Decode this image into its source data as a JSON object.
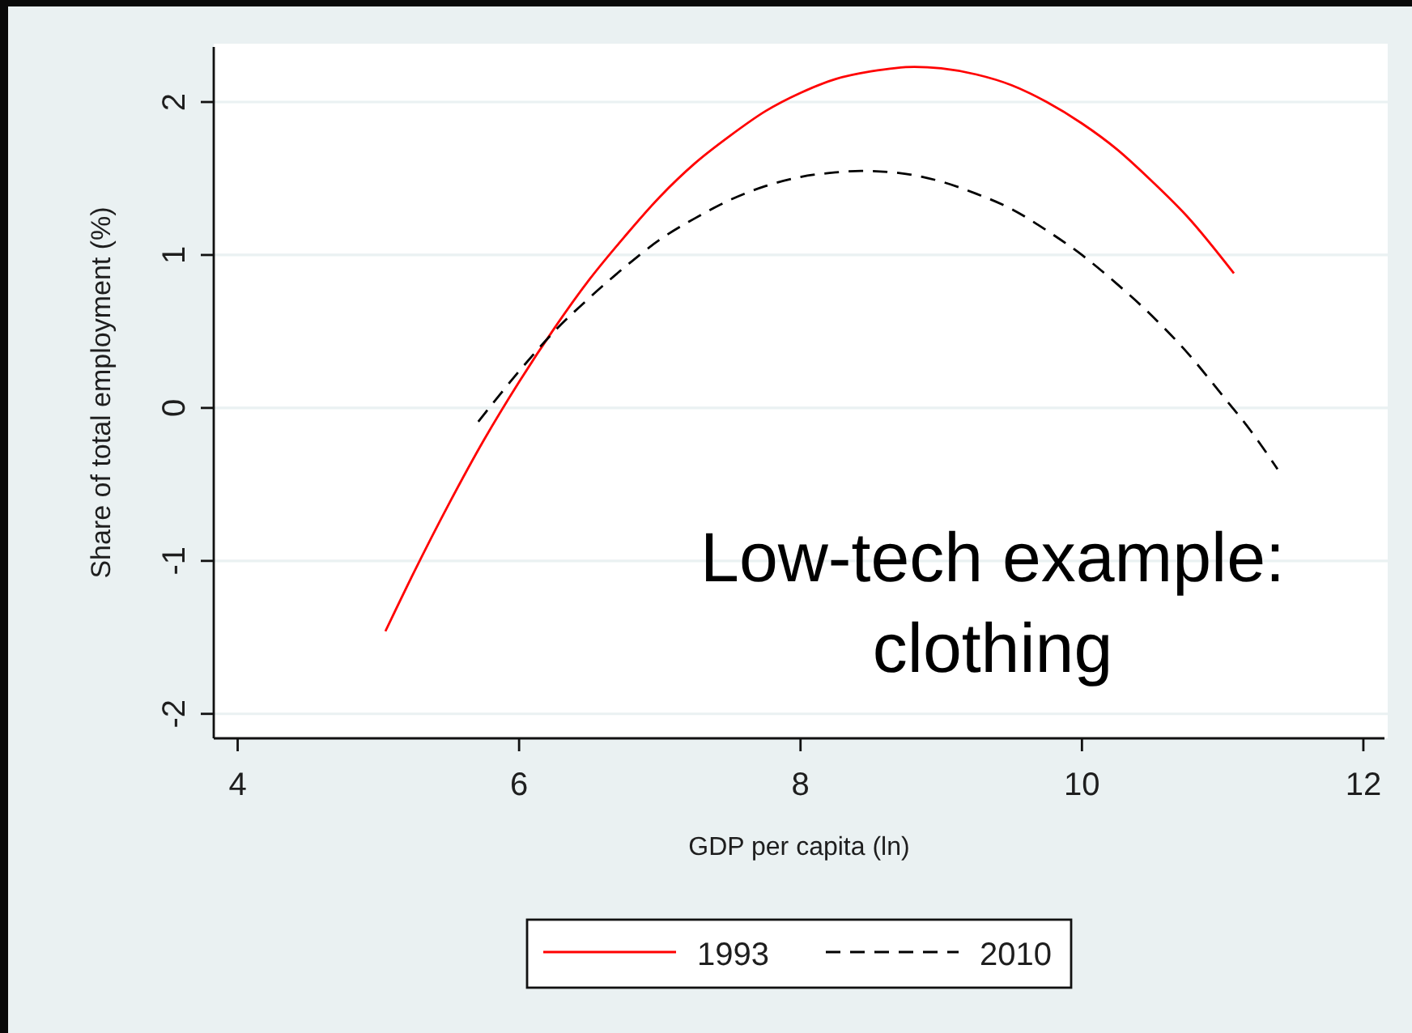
{
  "chart_data": {
    "type": "line",
    "xlabel": "GDP per capita (ln)",
    "ylabel": "Share of total employment (%)",
    "annotations": [
      "Low-tech example:\nclothing"
    ],
    "xlim": [
      3.83,
      12.15
    ],
    "xticks": [
      4,
      6,
      8,
      10,
      12
    ],
    "ylim": [
      -2.16,
      2.36
    ],
    "yticks": [
      -2,
      -1,
      0,
      1,
      2
    ],
    "grid": "y",
    "legend": "bottom",
    "series": [
      {
        "name": "1993",
        "color": "#ff0000",
        "line_style": "solid",
        "x": [
          5.05,
          5.25,
          5.5,
          5.75,
          6,
          6.25,
          6.5,
          6.75,
          7,
          7.25,
          7.5,
          7.75,
          8,
          8.25,
          8.5,
          8.81,
          9,
          9.25,
          9.5,
          9.75,
          10,
          10.25,
          10.5,
          10.75,
          11.08
        ],
        "values": [
          -1.46,
          -1.08,
          -0.63,
          -0.21,
          0.17,
          0.52,
          0.84,
          1.12,
          1.38,
          1.6,
          1.78,
          1.94,
          2.06,
          2.15,
          2.2,
          2.23,
          2.22,
          2.18,
          2.11,
          2.0,
          1.86,
          1.69,
          1.48,
          1.25,
          0.88
        ]
      },
      {
        "name": "2010",
        "color": "#000000",
        "line_style": "dashed",
        "x": [
          5.71,
          6,
          6.25,
          6.5,
          6.75,
          7,
          7.25,
          7.5,
          7.75,
          8,
          8.25,
          8.43,
          8.75,
          9,
          9.25,
          9.5,
          9.75,
          10,
          10.25,
          10.5,
          10.75,
          11,
          11.2,
          11.39
        ],
        "values": [
          -0.09,
          0.24,
          0.5,
          0.72,
          0.92,
          1.1,
          1.24,
          1.36,
          1.45,
          1.51,
          1.54,
          1.55,
          1.53,
          1.48,
          1.4,
          1.3,
          1.16,
          1.0,
          0.81,
          0.6,
          0.36,
          0.08,
          -0.15,
          -0.4
        ]
      }
    ]
  }
}
